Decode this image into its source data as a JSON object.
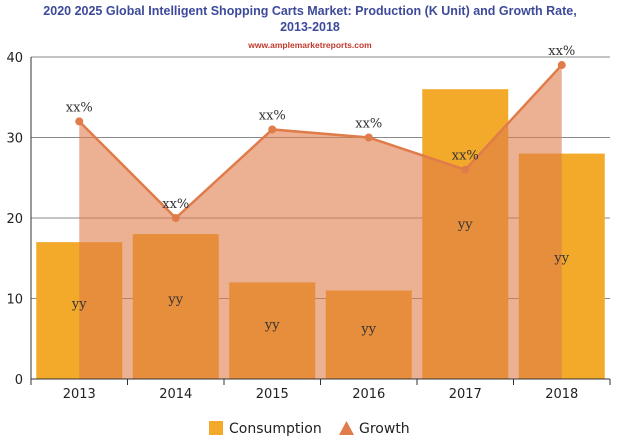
{
  "chart_data": {
    "type": "bar",
    "title_line1": "2020 2025 Global Intelligent Shopping Carts Market: Production (K Unit) and Growth Rate,",
    "title_line2": "2013-2018",
    "subtitle": "www.amplemarketreports.com",
    "categories": [
      "2013",
      "2014",
      "2015",
      "2016",
      "2017",
      "2018"
    ],
    "series": [
      {
        "name": "Consumption",
        "type": "bar",
        "color": "#f3aa2a",
        "values": [
          17,
          18,
          12,
          11,
          36,
          28
        ],
        "labels": [
          "yy",
          "yy",
          "yy",
          "yy",
          "yy",
          "yy"
        ]
      },
      {
        "name": "Growth",
        "type": "area-line",
        "color": "#e07b4a",
        "values": [
          32,
          20,
          31,
          30,
          26,
          39
        ],
        "labels": [
          "xx%",
          "xx%",
          "xx%",
          "xx%",
          "xx%",
          "xx%"
        ]
      }
    ],
    "ylim": [
      0,
      40
    ],
    "yticks": [
      "0",
      "10",
      "20",
      "30",
      "40"
    ],
    "grid": true,
    "legend_position": "bottom"
  }
}
